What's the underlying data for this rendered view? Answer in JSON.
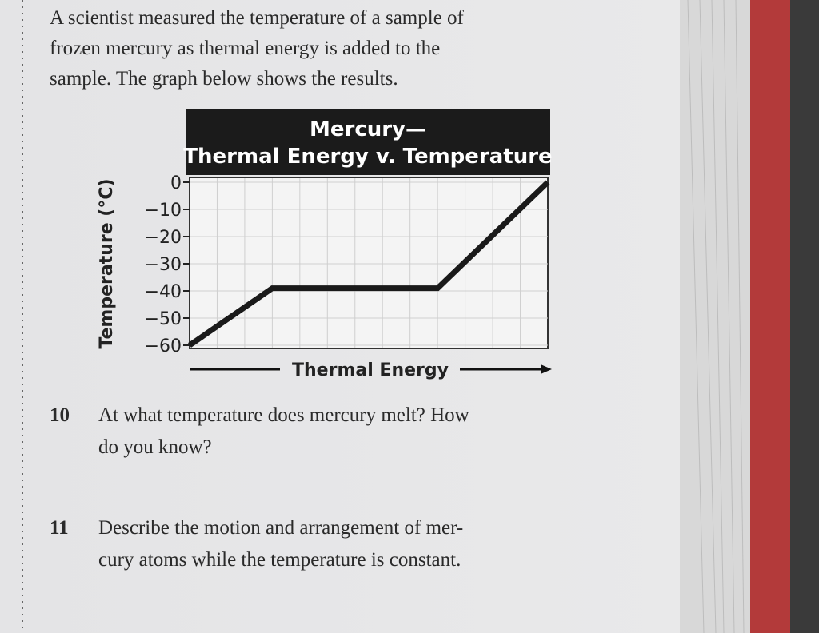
{
  "intro": [
    "A scientist measured the temperature of a sample of",
    "frozen mercury as thermal energy is added to the",
    "sample. The graph below shows the results."
  ],
  "chart_data": {
    "type": "line",
    "title": "Mercury—",
    "subtitle": "Thermal Energy v. Temperature",
    "x_label": "Thermal Energy",
    "y_label": "Temperature (°C)",
    "x": [
      0,
      3,
      9,
      13
    ],
    "series": [
      {
        "color": "#1a1a1a",
        "values": [
          -60,
          -39,
          -39,
          0
        ]
      }
    ],
    "xlim": [
      0,
      13
    ],
    "ylim": [
      -60,
      0
    ],
    "yticks": [
      0,
      {
        "value": -10,
        "label": "−10"
      },
      {
        "value": -20,
        "label": "−20"
      },
      {
        "value": -30,
        "label": "−30"
      },
      {
        "value": -40,
        "label": "−40"
      },
      {
        "value": -50,
        "label": "−50"
      },
      {
        "value": -60,
        "label": "−60"
      }
    ],
    "grid": true
  },
  "questions": [
    {
      "number": "10",
      "lines": [
        "At what temperature does mercury melt? How",
        "do you know?"
      ]
    },
    {
      "number": "11",
      "lines": [
        "Describe the motion and arrangement of mer-",
        "cury atoms while the temperature is constant."
      ]
    }
  ]
}
